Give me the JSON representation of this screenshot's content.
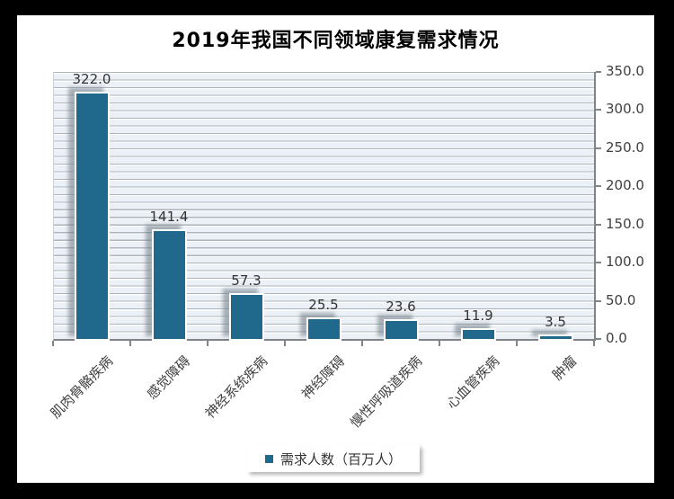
{
  "frame": {
    "background_color": "#000000",
    "panel_color": "#ffffff"
  },
  "title": "2019年我国不同领域康复需求情况",
  "legend": {
    "label": "需求人数（百万人）",
    "marker_color": "#20688C"
  },
  "chart_data": {
    "type": "bar",
    "title": "2019年我国不同领域康复需求情况",
    "categories": [
      "肌肉骨骼疾病",
      "感觉障碍",
      "神经系统疾病",
      "神经障碍",
      "慢性呼吸道疾病",
      "心血管疾病",
      "肿瘤"
    ],
    "series": [
      {
        "name": "需求人数（百万人）",
        "values": [
          322.0,
          141.4,
          57.3,
          25.5,
          23.6,
          11.9,
          3.5
        ],
        "value_labels": [
          "322.0",
          "141.4",
          "57.3",
          "25.5",
          "23.6",
          "11.9",
          "3.5"
        ]
      }
    ],
    "xlabel": "",
    "ylabel": "",
    "ylim": [
      0,
      350
    ],
    "yticks": [
      "0.0",
      "50.0",
      "100.0",
      "150.0",
      "200.0",
      "250.0",
      "300.0",
      "350.0"
    ],
    "y_axis_side": "right",
    "grid": "horizontal, minor gridlines every 10 units",
    "bar_color": "#20688C",
    "plot_background": "#ebf1f6",
    "legend_position": "bottom-center"
  }
}
